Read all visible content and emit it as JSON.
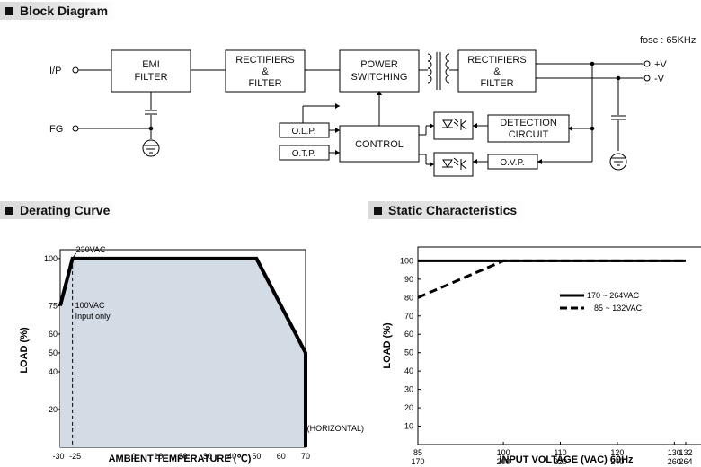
{
  "sections": {
    "block_diagram": "Block Diagram",
    "derating_curve": "Derating Curve",
    "static_characteristics": "Static Characteristics"
  },
  "block_diagram": {
    "fosc": "fosc : 65KHz",
    "inputs": {
      "ip": "I/P",
      "fg": "FG"
    },
    "outputs": {
      "plus": "+V",
      "minus": "-V"
    },
    "blocks": {
      "emi": [
        "EMI",
        "FILTER"
      ],
      "rect1": [
        "RECTIFIERS",
        "&",
        "FILTER"
      ],
      "power": [
        "POWER",
        "SWITCHING"
      ],
      "rect2": [
        "RECTIFIERS",
        "&",
        "FILTER"
      ],
      "olp": "O.L.P.",
      "otp": "O.T.P.",
      "control": "CONTROL",
      "detection": [
        "DETECTION",
        "CIRCUIT"
      ],
      "ovp": "O.V.P."
    },
    "colors": {
      "line": "#000000"
    }
  },
  "derating": {
    "chart_data": {
      "type": "line",
      "xlabel": "AMBIENT TEMPERATURE (℃)",
      "ylabel": "LOAD (%)",
      "x_ticks": [
        "-30",
        "-25",
        "0",
        "10",
        "20",
        "30",
        "40",
        "50",
        "60",
        "70"
      ],
      "x_suffix": "(HORIZONTAL)",
      "y_ticks": [
        "20",
        "40",
        "50",
        "60",
        "75",
        "100"
      ],
      "xlim": [
        -30,
        70
      ],
      "ylim": [
        0,
        100
      ],
      "series": [
        {
          "name": "230VAC",
          "x": [
            -30,
            -25,
            50,
            70,
            70
          ],
          "y": [
            75,
            100,
            100,
            50,
            0
          ]
        }
      ],
      "annotations": {
        "vline": -25,
        "note_line1": "100VAC",
        "note_line2": "Input only"
      },
      "fill_color": "#d3dbe5"
    }
  },
  "static": {
    "chart_data": {
      "type": "line",
      "xlabel": "INPUT VOLTAGE (VAC) 60Hz",
      "ylabel": "LOAD (%)",
      "x_ticks_top": [
        "85",
        "100",
        "110",
        "120",
        "130",
        "132"
      ],
      "x_ticks_bottom": [
        "170",
        "200",
        "220",
        "240",
        "260",
        "264"
      ],
      "y_ticks": [
        "10",
        "20",
        "30",
        "40",
        "50",
        "60",
        "70",
        "80",
        "90",
        "100"
      ],
      "xlim": [
        85,
        132
      ],
      "ylim": [
        0,
        100
      ],
      "series": [
        {
          "name": "170 ~ 264VAC",
          "style": "solid",
          "x": [
            85,
            132
          ],
          "y": [
            100,
            100
          ]
        },
        {
          "name": "85 ~ 132VAC",
          "style": "dashed",
          "x": [
            85,
            100,
            132
          ],
          "y": [
            80,
            100,
            100
          ]
        }
      ]
    }
  }
}
